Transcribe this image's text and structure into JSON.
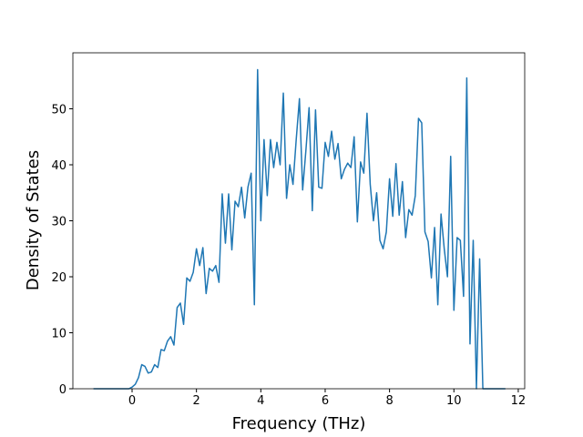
{
  "chart_data": {
    "type": "line",
    "x_label": "Frequency (THz)",
    "y_label": "Density of States",
    "x": [
      -1.2,
      -1.1,
      -1.0,
      -0.9,
      -0.8,
      -0.7,
      -0.6,
      -0.5,
      -0.4,
      -0.3,
      -0.2,
      -0.1,
      0.0,
      0.1,
      0.2,
      0.3,
      0.4,
      0.5,
      0.6,
      0.7,
      0.8,
      0.9,
      1.0,
      1.1,
      1.2,
      1.3,
      1.4,
      1.5,
      1.6,
      1.7,
      1.8,
      1.9,
      2.0,
      2.1,
      2.2,
      2.3,
      2.4,
      2.5,
      2.6,
      2.7,
      2.8,
      2.9,
      3.0,
      3.1,
      3.2,
      3.3,
      3.4,
      3.5,
      3.6,
      3.7,
      3.8,
      3.9,
      4.0,
      4.1,
      4.2,
      4.3,
      4.4,
      4.5,
      4.6,
      4.7,
      4.8,
      4.9,
      5.0,
      5.1,
      5.2,
      5.3,
      5.4,
      5.5,
      5.6,
      5.7,
      5.8,
      5.9,
      6.0,
      6.1,
      6.2,
      6.3,
      6.4,
      6.5,
      6.6,
      6.7,
      6.8,
      6.9,
      7.0,
      7.1,
      7.2,
      7.3,
      7.4,
      7.5,
      7.6,
      7.7,
      7.8,
      7.9,
      8.0,
      8.1,
      8.2,
      8.3,
      8.4,
      8.5,
      8.6,
      8.7,
      8.8,
      8.9,
      9.0,
      9.1,
      9.2,
      9.3,
      9.4,
      9.5,
      9.6,
      9.7,
      9.8,
      9.9,
      10.0,
      10.1,
      10.2,
      10.3,
      10.4,
      10.5,
      10.6,
      10.7,
      10.8,
      10.9,
      11.0,
      11.1,
      11.2,
      11.3,
      11.4,
      11.5,
      11.6
    ],
    "series": [
      {
        "color": "#1f77b4",
        "values": [
          0,
          0,
          0,
          0,
          0,
          0,
          0,
          0,
          0,
          0,
          0,
          0,
          0.3,
          0.8,
          2.0,
          4.3,
          4.0,
          2.8,
          3.0,
          4.3,
          3.8,
          7.0,
          6.8,
          8.5,
          9.3,
          7.8,
          14.5,
          15.3,
          11.5,
          19.8,
          19.2,
          20.8,
          25.0,
          22.0,
          25.2,
          17.0,
          21.5,
          21.0,
          22.0,
          19.0,
          34.8,
          26.0,
          34.8,
          24.8,
          33.5,
          32.5,
          36.0,
          30.5,
          36.0,
          38.5,
          15.0,
          57.0,
          30.0,
          44.5,
          34.5,
          44.5,
          39.5,
          44.0,
          40.0,
          52.8,
          34.0,
          40.0,
          36.5,
          44.5,
          51.8,
          35.5,
          42.5,
          50.2,
          31.8,
          49.8,
          36.0,
          35.8,
          44.0,
          41.5,
          46.0,
          41.0,
          43.8,
          37.5,
          39.2,
          40.3,
          39.5,
          45.0,
          29.8,
          40.5,
          38.5,
          49.2,
          36.5,
          30.0,
          35.0,
          26.5,
          25.0,
          28.0,
          37.5,
          30.8,
          40.2,
          31.0,
          37.0,
          27.0,
          32.0,
          31.0,
          34.5,
          48.3,
          47.5,
          28.0,
          26.3,
          19.8,
          28.8,
          15.0,
          31.2,
          25.0,
          20.0,
          41.5,
          14.0,
          27.0,
          26.5,
          16.5,
          55.5,
          8.0,
          26.5,
          0,
          23.2,
          0,
          0,
          0,
          0,
          0,
          0,
          0,
          0
        ]
      }
    ],
    "xlim": [
      -1.84,
      12.2
    ],
    "ylim": [
      0,
      60
    ],
    "xticks": [
      0,
      2,
      4,
      6,
      8,
      10,
      12
    ],
    "yticks": [
      0,
      10,
      20,
      30,
      40,
      50
    ]
  }
}
